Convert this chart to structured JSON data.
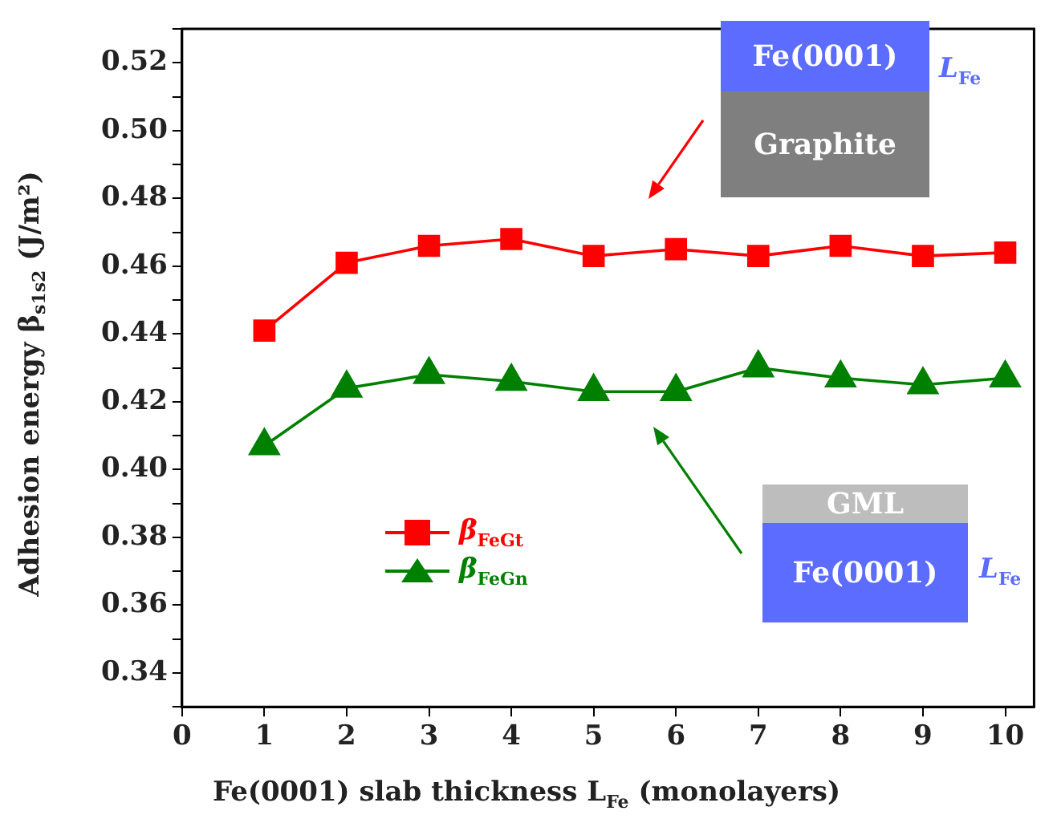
{
  "chart_data": {
    "type": "line",
    "xlabel": "Fe(0001) slab thickness L$_{Fe}$ (monolayers)",
    "ylabel": "Adhesion energy β$_{s1s2}$ (J/m²)",
    "x": [
      1,
      2,
      3,
      4,
      5,
      6,
      7,
      8,
      9,
      10
    ],
    "series": [
      {
        "name": "β$_{FeGt}$",
        "color": "#ff0000",
        "marker": "square",
        "values": [
          0.441,
          0.461,
          0.466,
          0.468,
          0.463,
          0.465,
          0.463,
          0.466,
          0.463,
          0.464
        ]
      },
      {
        "name": "β$_{FeGn}$",
        "color": "#008000",
        "marker": "triangle",
        "values": [
          0.407,
          0.424,
          0.428,
          0.426,
          0.423,
          0.423,
          0.43,
          0.427,
          0.425,
          0.427
        ]
      }
    ],
    "xlim": [
      0,
      10.35
    ],
    "xticks": [
      0,
      1,
      2,
      3,
      4,
      5,
      6,
      7,
      8,
      9,
      10
    ],
    "ylim": [
      0.33,
      0.53
    ],
    "yticks": [
      {
        "value": 0.33,
        "label": null
      },
      0.34,
      {
        "value": 0.35,
        "label": null
      },
      0.36,
      {
        "value": 0.37,
        "label": null
      },
      0.38,
      {
        "value": 0.39,
        "label": null
      },
      {
        "value": 0.4,
        "label": "0.40"
      },
      {
        "value": 0.41,
        "label": null
      },
      0.42,
      {
        "value": 0.43,
        "label": null
      },
      0.44,
      {
        "value": 0.45,
        "label": null
      },
      0.46,
      {
        "value": 0.47,
        "label": null
      },
      0.48,
      {
        "value": 0.49,
        "label": null
      },
      {
        "value": 0.5,
        "label": "0.50"
      },
      {
        "value": 0.51,
        "label": null
      },
      0.52,
      {
        "value": 0.53,
        "label": null
      }
    ],
    "grid": false,
    "legend": "left",
    "line_style": "solid",
    "annotations": [
      "Fe(0001)",
      "L$_{Fe}$",
      "Graphite",
      "GML",
      "Fe(0001)",
      "L$_{Fe}$"
    ]
  }
}
